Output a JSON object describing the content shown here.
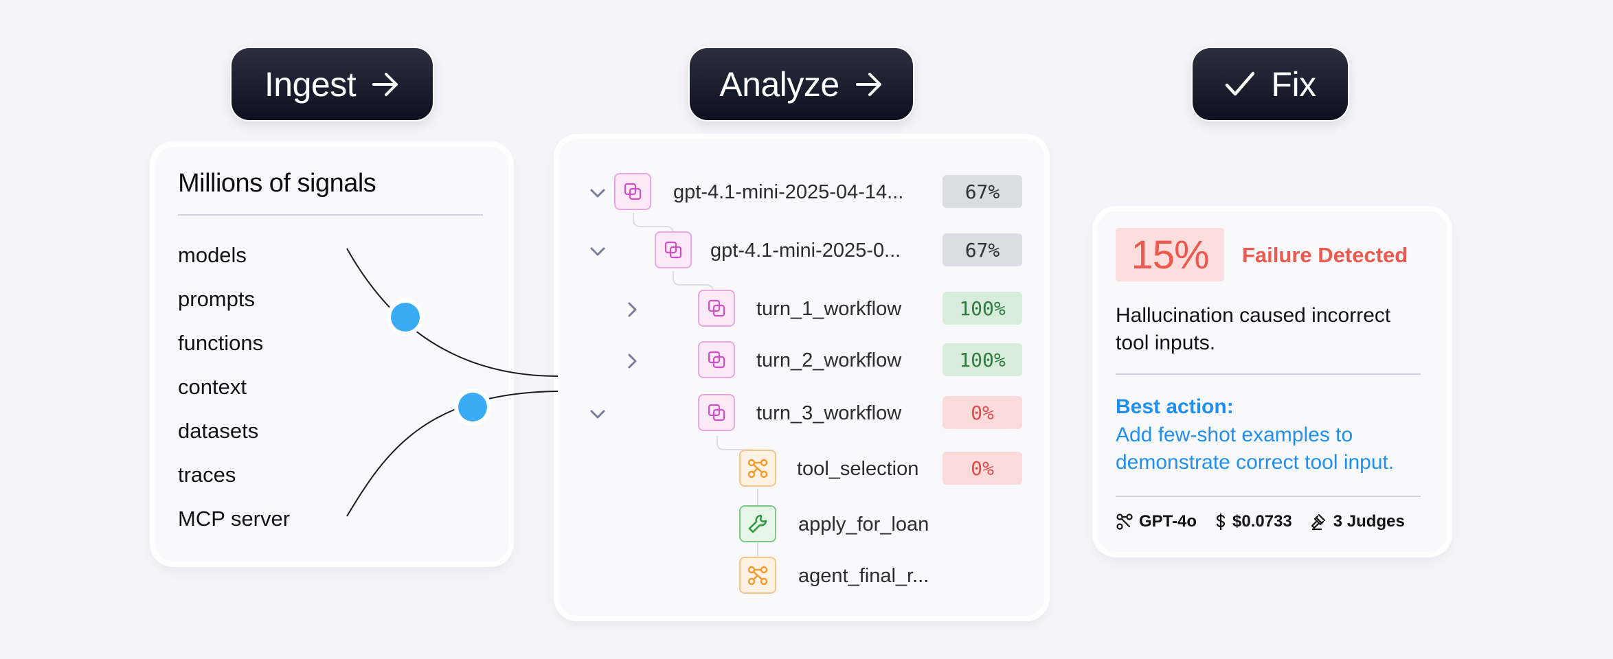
{
  "stages": {
    "ingest": {
      "label": "Ingest",
      "icon": "arrow-right-icon"
    },
    "analyze": {
      "label": "Analyze",
      "icon": "arrow-right-icon"
    },
    "fix": {
      "label": "Fix",
      "icon": "check-icon"
    }
  },
  "signals": {
    "title": "Millions of signals",
    "items": [
      "models",
      "prompts",
      "functions",
      "context",
      "datasets",
      "traces",
      "MCP server"
    ]
  },
  "connector_color": "#3aabf5",
  "tree": {
    "rows": [
      {
        "label": "gpt-4.1-mini-2025-04-14...",
        "score": "67%",
        "status": "gray",
        "icon": "copy-icon",
        "chevron": "down"
      },
      {
        "label": "gpt-4.1-mini-2025-0...",
        "score": "67%",
        "status": "gray",
        "icon": "copy-icon",
        "chevron": "down"
      },
      {
        "label": "turn_1_workflow",
        "score": "100%",
        "status": "green",
        "icon": "copy-icon",
        "chevron": "right"
      },
      {
        "label": "turn_2_workflow",
        "score": "100%",
        "status": "green",
        "icon": "copy-icon",
        "chevron": "right"
      },
      {
        "label": "turn_3_workflow",
        "score": "0%",
        "status": "red",
        "icon": "copy-icon",
        "chevron": "down"
      },
      {
        "label": "tool_selection",
        "score": "0%",
        "status": "red",
        "icon": "branch-icon",
        "chevron": ""
      },
      {
        "label": "apply_for_loan",
        "score": "",
        "status": "",
        "icon": "wrench-icon",
        "chevron": ""
      },
      {
        "label": "agent_final_r...",
        "score": "",
        "status": "",
        "icon": "branch-icon",
        "chevron": ""
      }
    ]
  },
  "fix": {
    "percent": "15%",
    "detected": "Failure Detected",
    "description": "Hallucination caused incorrect tool inputs.",
    "best_action_label": "Best action:",
    "best_action": "Add few-shot examples to demonstrate correct tool input.",
    "model": "GPT-4o",
    "cost": "$0.0733",
    "judges": "3 Judges"
  },
  "colors": {
    "failure": "#ec5a4f",
    "action": "#1f8ff0",
    "success": "#2f7a43"
  }
}
